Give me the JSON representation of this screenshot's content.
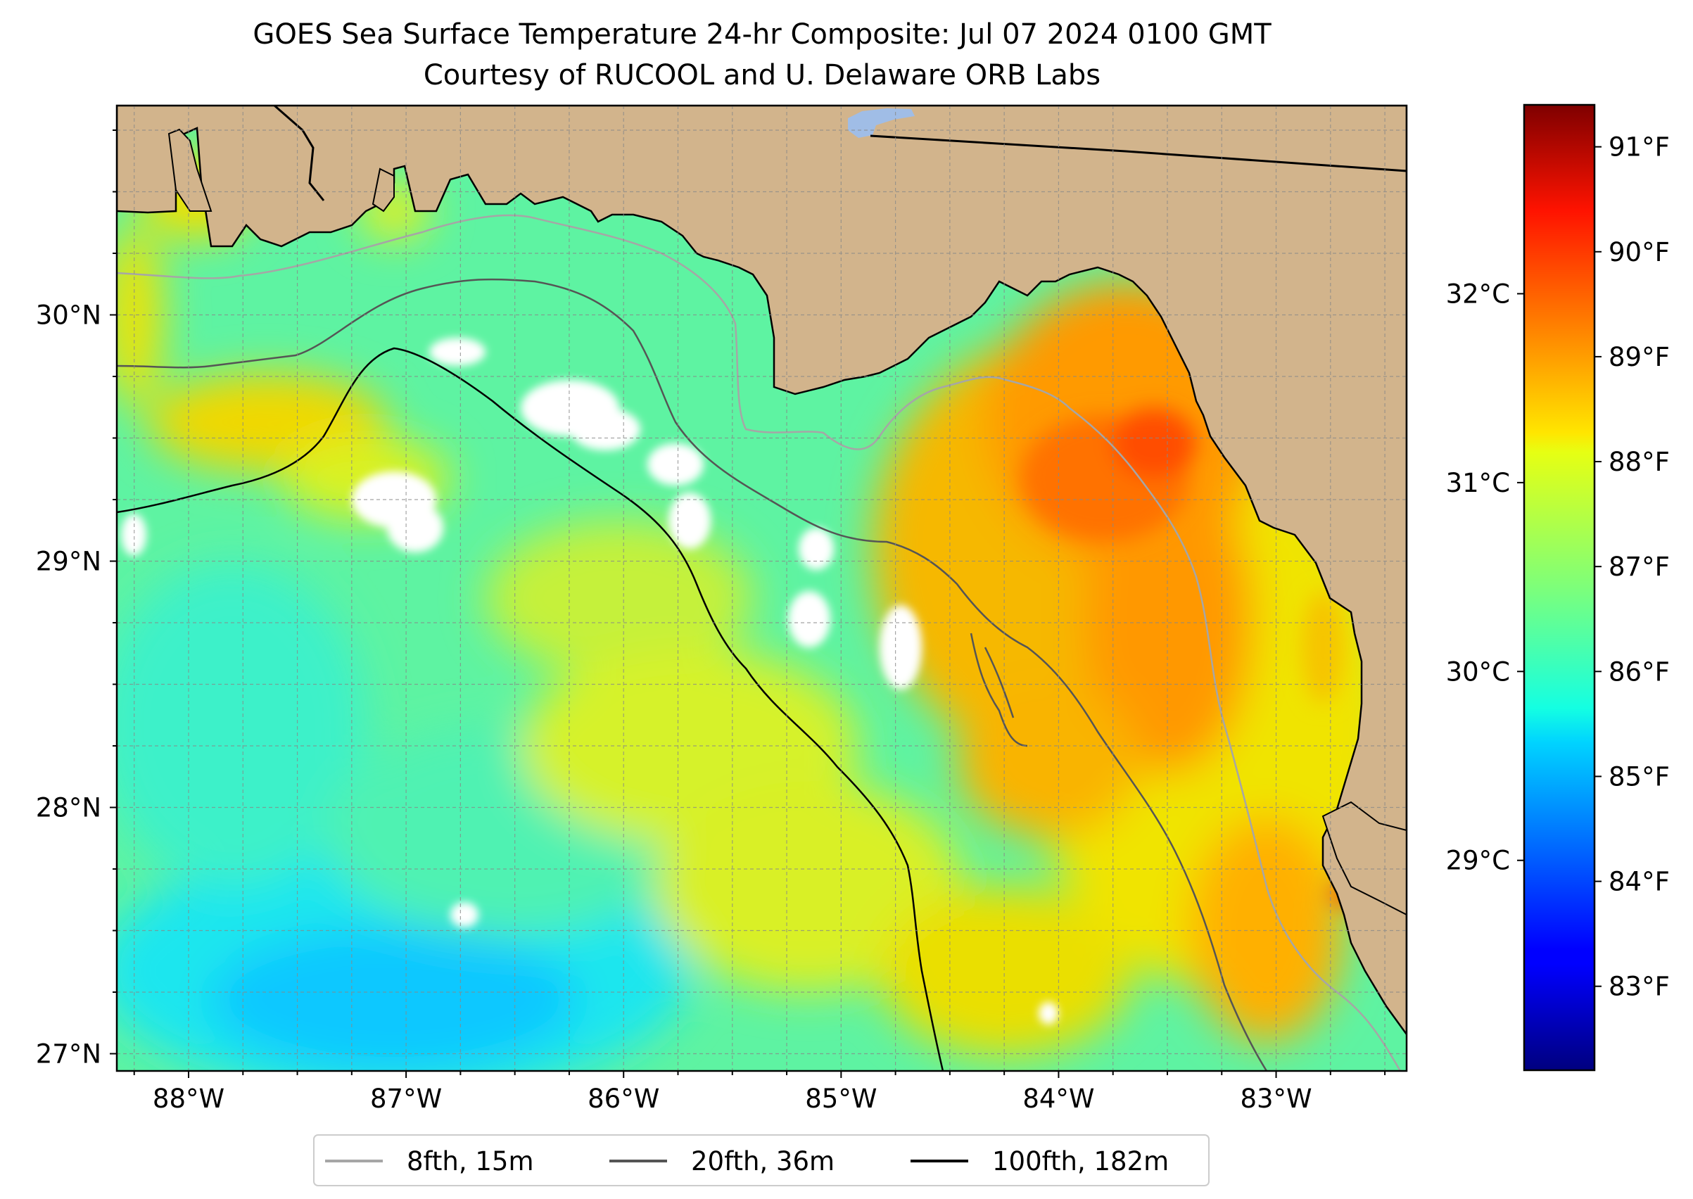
{
  "figure": {
    "title_line1": "GOES Sea Surface Temperature 24-hr Composite: Jul 07 2024 0100 GMT",
    "title_line2": "Courtesy of RUCOOL and U. Delaware ORB Labs"
  },
  "map": {
    "region": "NE Gulf of Mexico / Florida Big Bend",
    "lon_range": [
      -88.33,
      -82.4
    ],
    "lat_range": [
      26.93,
      30.85
    ],
    "lon_ticks": [
      {
        "value": -88,
        "label": "88°W"
      },
      {
        "value": -87,
        "label": "87°W"
      },
      {
        "value": -86,
        "label": "86°W"
      },
      {
        "value": -85,
        "label": "85°W"
      },
      {
        "value": -84,
        "label": "84°W"
      },
      {
        "value": -83,
        "label": "83°W"
      }
    ],
    "lat_ticks": [
      {
        "value": 30,
        "label": "30°N"
      },
      {
        "value": 29,
        "label": "29°N"
      },
      {
        "value": 28,
        "label": "28°N"
      },
      {
        "value": 27,
        "label": "27°N"
      }
    ],
    "gridlines": true,
    "land_color": "#d2b48c",
    "nodata_color": "#ffffff",
    "lake_color": "#a0bde6"
  },
  "colorbar": {
    "colormap": "jet",
    "range_f": [
      82.2,
      91.4
    ],
    "ticks_f": [
      {
        "value": 83,
        "label": "83°F"
      },
      {
        "value": 84,
        "label": "84°F"
      },
      {
        "value": 85,
        "label": "85°F"
      },
      {
        "value": 86,
        "label": "86°F"
      },
      {
        "value": 87,
        "label": "87°F"
      },
      {
        "value": 88,
        "label": "88°F"
      },
      {
        "value": 89,
        "label": "89°F"
      },
      {
        "value": 90,
        "label": "90°F"
      },
      {
        "value": 91,
        "label": "91°F"
      }
    ],
    "ticks_c": [
      {
        "value": 29,
        "label": "29°C"
      },
      {
        "value": 30,
        "label": "30°C"
      },
      {
        "value": 31,
        "label": "31°C"
      },
      {
        "value": 32,
        "label": "32°C"
      }
    ]
  },
  "legend": {
    "placement": "bottom-center",
    "entries": [
      {
        "label": "8fth, 15m",
        "color": "#a6a6a6"
      },
      {
        "label": "20fth, 36m",
        "color": "#555555"
      },
      {
        "label": "100fth, 182m",
        "color": "#000000"
      }
    ]
  }
}
